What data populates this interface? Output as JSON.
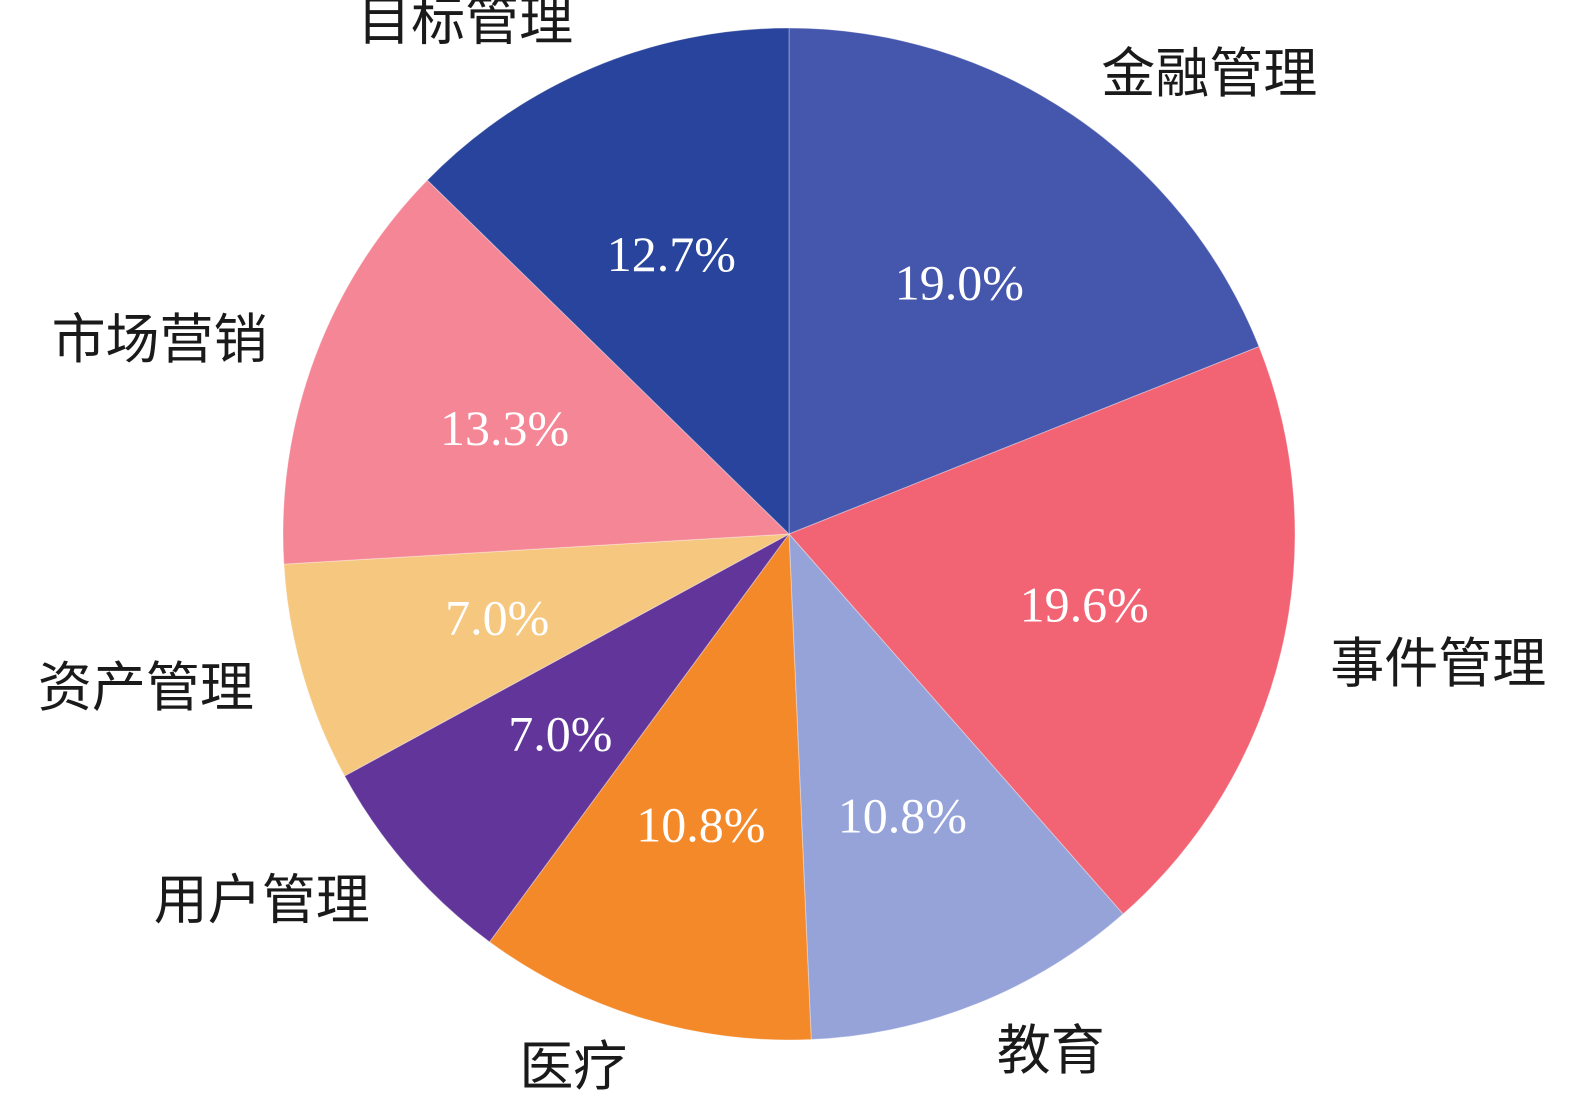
{
  "chart_data": {
    "type": "pie",
    "start_angle_deg": 0,
    "direction": "clockwise",
    "slices": [
      {
        "label": "金融管理",
        "value": 19.0,
        "display": "19.0%",
        "color": "#4556ad"
      },
      {
        "label": "事件管理",
        "value": 19.6,
        "display": "19.6%",
        "color": "#f26374"
      },
      {
        "label": "教育",
        "value": 10.8,
        "display": "10.8%",
        "color": "#95a3d9"
      },
      {
        "label": "医疗",
        "value": 10.8,
        "display": "10.8%",
        "color": "#f4892a"
      },
      {
        "label": "用户管理",
        "value": 7.0,
        "display": "7.0%",
        "color": "#62359a"
      },
      {
        "label": "资产管理",
        "value": 7.0,
        "display": "7.0%",
        "color": "#f6c77f"
      },
      {
        "label": "市场营销",
        "value": 13.3,
        "display": "13.3%",
        "color": "#f58696"
      },
      {
        "label": "目标管理",
        "value": 12.7,
        "display": "12.7%",
        "color": "#28449c"
      }
    ]
  }
}
